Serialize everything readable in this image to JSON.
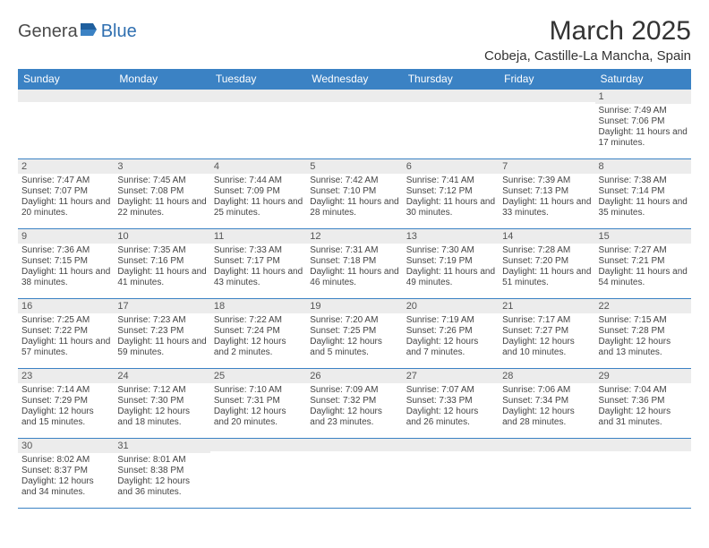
{
  "logo": {
    "part1": "Genera",
    "part2": "Blue"
  },
  "title": "March 2025",
  "location": "Cobeja, Castille-La Mancha, Spain",
  "colors": {
    "header_bg": "#3b82c4",
    "header_fg": "#ffffff",
    "daynum_bg": "#ececec",
    "border": "#3b82c4",
    "logo_gray": "#4a4a4a",
    "logo_blue": "#2f6fb0"
  },
  "day_headers": [
    "Sunday",
    "Monday",
    "Tuesday",
    "Wednesday",
    "Thursday",
    "Friday",
    "Saturday"
  ],
  "weeks": [
    [
      {
        "n": "",
        "sr": "",
        "ss": "",
        "dl": ""
      },
      {
        "n": "",
        "sr": "",
        "ss": "",
        "dl": ""
      },
      {
        "n": "",
        "sr": "",
        "ss": "",
        "dl": ""
      },
      {
        "n": "",
        "sr": "",
        "ss": "",
        "dl": ""
      },
      {
        "n": "",
        "sr": "",
        "ss": "",
        "dl": ""
      },
      {
        "n": "",
        "sr": "",
        "ss": "",
        "dl": ""
      },
      {
        "n": "1",
        "sr": "Sunrise: 7:49 AM",
        "ss": "Sunset: 7:06 PM",
        "dl": "Daylight: 11 hours and 17 minutes."
      }
    ],
    [
      {
        "n": "2",
        "sr": "Sunrise: 7:47 AM",
        "ss": "Sunset: 7:07 PM",
        "dl": "Daylight: 11 hours and 20 minutes."
      },
      {
        "n": "3",
        "sr": "Sunrise: 7:45 AM",
        "ss": "Sunset: 7:08 PM",
        "dl": "Daylight: 11 hours and 22 minutes."
      },
      {
        "n": "4",
        "sr": "Sunrise: 7:44 AM",
        "ss": "Sunset: 7:09 PM",
        "dl": "Daylight: 11 hours and 25 minutes."
      },
      {
        "n": "5",
        "sr": "Sunrise: 7:42 AM",
        "ss": "Sunset: 7:10 PM",
        "dl": "Daylight: 11 hours and 28 minutes."
      },
      {
        "n": "6",
        "sr": "Sunrise: 7:41 AM",
        "ss": "Sunset: 7:12 PM",
        "dl": "Daylight: 11 hours and 30 minutes."
      },
      {
        "n": "7",
        "sr": "Sunrise: 7:39 AM",
        "ss": "Sunset: 7:13 PM",
        "dl": "Daylight: 11 hours and 33 minutes."
      },
      {
        "n": "8",
        "sr": "Sunrise: 7:38 AM",
        "ss": "Sunset: 7:14 PM",
        "dl": "Daylight: 11 hours and 35 minutes."
      }
    ],
    [
      {
        "n": "9",
        "sr": "Sunrise: 7:36 AM",
        "ss": "Sunset: 7:15 PM",
        "dl": "Daylight: 11 hours and 38 minutes."
      },
      {
        "n": "10",
        "sr": "Sunrise: 7:35 AM",
        "ss": "Sunset: 7:16 PM",
        "dl": "Daylight: 11 hours and 41 minutes."
      },
      {
        "n": "11",
        "sr": "Sunrise: 7:33 AM",
        "ss": "Sunset: 7:17 PM",
        "dl": "Daylight: 11 hours and 43 minutes."
      },
      {
        "n": "12",
        "sr": "Sunrise: 7:31 AM",
        "ss": "Sunset: 7:18 PM",
        "dl": "Daylight: 11 hours and 46 minutes."
      },
      {
        "n": "13",
        "sr": "Sunrise: 7:30 AM",
        "ss": "Sunset: 7:19 PM",
        "dl": "Daylight: 11 hours and 49 minutes."
      },
      {
        "n": "14",
        "sr": "Sunrise: 7:28 AM",
        "ss": "Sunset: 7:20 PM",
        "dl": "Daylight: 11 hours and 51 minutes."
      },
      {
        "n": "15",
        "sr": "Sunrise: 7:27 AM",
        "ss": "Sunset: 7:21 PM",
        "dl": "Daylight: 11 hours and 54 minutes."
      }
    ],
    [
      {
        "n": "16",
        "sr": "Sunrise: 7:25 AM",
        "ss": "Sunset: 7:22 PM",
        "dl": "Daylight: 11 hours and 57 minutes."
      },
      {
        "n": "17",
        "sr": "Sunrise: 7:23 AM",
        "ss": "Sunset: 7:23 PM",
        "dl": "Daylight: 11 hours and 59 minutes."
      },
      {
        "n": "18",
        "sr": "Sunrise: 7:22 AM",
        "ss": "Sunset: 7:24 PM",
        "dl": "Daylight: 12 hours and 2 minutes."
      },
      {
        "n": "19",
        "sr": "Sunrise: 7:20 AM",
        "ss": "Sunset: 7:25 PM",
        "dl": "Daylight: 12 hours and 5 minutes."
      },
      {
        "n": "20",
        "sr": "Sunrise: 7:19 AM",
        "ss": "Sunset: 7:26 PM",
        "dl": "Daylight: 12 hours and 7 minutes."
      },
      {
        "n": "21",
        "sr": "Sunrise: 7:17 AM",
        "ss": "Sunset: 7:27 PM",
        "dl": "Daylight: 12 hours and 10 minutes."
      },
      {
        "n": "22",
        "sr": "Sunrise: 7:15 AM",
        "ss": "Sunset: 7:28 PM",
        "dl": "Daylight: 12 hours and 13 minutes."
      }
    ],
    [
      {
        "n": "23",
        "sr": "Sunrise: 7:14 AM",
        "ss": "Sunset: 7:29 PM",
        "dl": "Daylight: 12 hours and 15 minutes."
      },
      {
        "n": "24",
        "sr": "Sunrise: 7:12 AM",
        "ss": "Sunset: 7:30 PM",
        "dl": "Daylight: 12 hours and 18 minutes."
      },
      {
        "n": "25",
        "sr": "Sunrise: 7:10 AM",
        "ss": "Sunset: 7:31 PM",
        "dl": "Daylight: 12 hours and 20 minutes."
      },
      {
        "n": "26",
        "sr": "Sunrise: 7:09 AM",
        "ss": "Sunset: 7:32 PM",
        "dl": "Daylight: 12 hours and 23 minutes."
      },
      {
        "n": "27",
        "sr": "Sunrise: 7:07 AM",
        "ss": "Sunset: 7:33 PM",
        "dl": "Daylight: 12 hours and 26 minutes."
      },
      {
        "n": "28",
        "sr": "Sunrise: 7:06 AM",
        "ss": "Sunset: 7:34 PM",
        "dl": "Daylight: 12 hours and 28 minutes."
      },
      {
        "n": "29",
        "sr": "Sunrise: 7:04 AM",
        "ss": "Sunset: 7:36 PM",
        "dl": "Daylight: 12 hours and 31 minutes."
      }
    ],
    [
      {
        "n": "30",
        "sr": "Sunrise: 8:02 AM",
        "ss": "Sunset: 8:37 PM",
        "dl": "Daylight: 12 hours and 34 minutes."
      },
      {
        "n": "31",
        "sr": "Sunrise: 8:01 AM",
        "ss": "Sunset: 8:38 PM",
        "dl": "Daylight: 12 hours and 36 minutes."
      },
      {
        "n": "",
        "sr": "",
        "ss": "",
        "dl": ""
      },
      {
        "n": "",
        "sr": "",
        "ss": "",
        "dl": ""
      },
      {
        "n": "",
        "sr": "",
        "ss": "",
        "dl": ""
      },
      {
        "n": "",
        "sr": "",
        "ss": "",
        "dl": ""
      },
      {
        "n": "",
        "sr": "",
        "ss": "",
        "dl": ""
      }
    ]
  ]
}
